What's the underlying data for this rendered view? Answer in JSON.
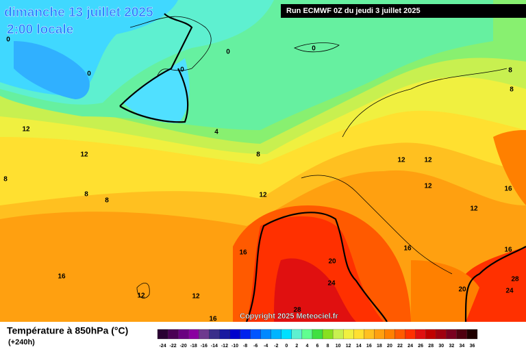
{
  "header": {
    "title": "dimanche 13 juillet 2025",
    "subtitle": "2:00 locale",
    "run": "Run ECMWF 0Z du jeudi 3 juillet 2025"
  },
  "copyright": "Copyright 2025 Meteociel.fr",
  "legend": {
    "title": "Température à 850hPa (°C)",
    "lead": "(+240h)",
    "labels": [
      "-24",
      "-22",
      "-20",
      "-18",
      "-16",
      "-14",
      "-12",
      "-10",
      "-8",
      "-6",
      "-4",
      "-2",
      "0",
      "2",
      "4",
      "6",
      "8",
      "10",
      "12",
      "14",
      "16",
      "18",
      "20",
      "22",
      "24",
      "26",
      "28",
      "30",
      "32",
      "34",
      "36"
    ],
    "colors": [
      "#2a0033",
      "#4b0055",
      "#6a0080",
      "#8a00a0",
      "#6e3a8e",
      "#3a2e8a",
      "#1a1aa0",
      "#0000cc",
      "#0022ee",
      "#0055ff",
      "#0088ff",
      "#00b4ff",
      "#00e0ff",
      "#5ef0d0",
      "#60ff90",
      "#40e040",
      "#88e020",
      "#c8f050",
      "#f0f040",
      "#ffe030",
      "#ffc020",
      "#ffa010",
      "#ff8000",
      "#ff5a00",
      "#ff3000",
      "#e01010",
      "#c00000",
      "#a00010",
      "#7a0020",
      "#500010",
      "#200000"
    ]
  },
  "contour_labels": [
    "0",
    "0",
    "0",
    "0",
    "0",
    "8",
    "8",
    "12",
    "12",
    "4",
    "8",
    "12",
    "12",
    "8",
    "8",
    "8",
    "12",
    "12",
    "16",
    "12",
    "16",
    "16",
    "16",
    "20",
    "16",
    "24",
    "28",
    "24",
    "20",
    "12",
    "12",
    "28",
    "16"
  ]
}
